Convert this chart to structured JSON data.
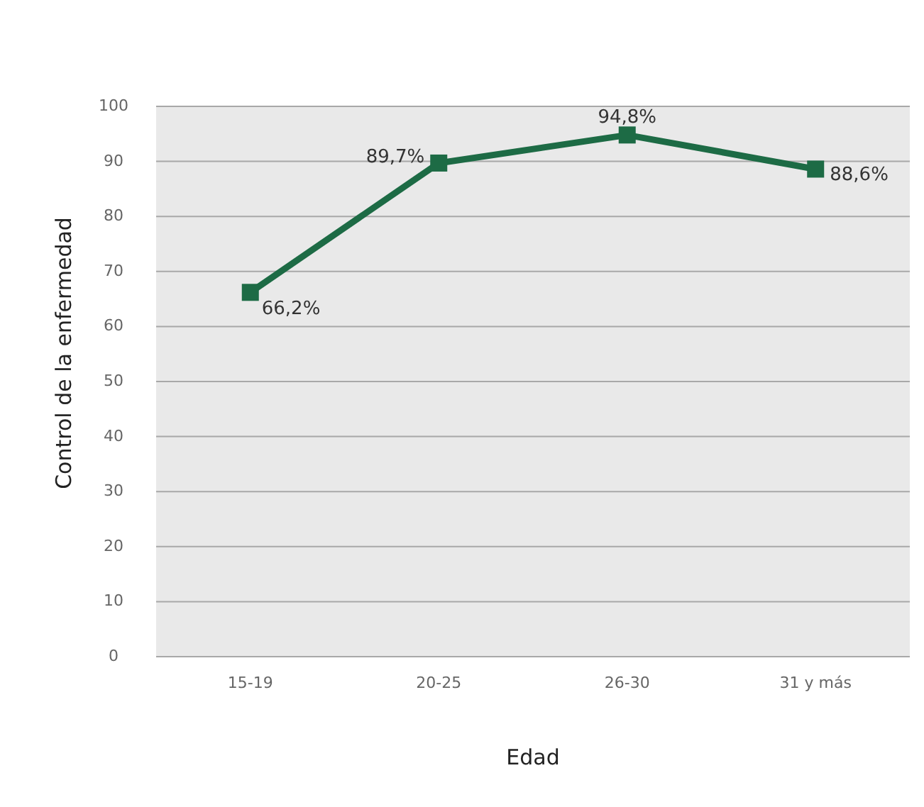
{
  "chart_data": {
    "type": "line",
    "xlabel": "Edad",
    "ylabel": "Control de la enfermedad",
    "categories": [
      "15-19",
      "20-25",
      "26-30",
      "31 y más"
    ],
    "series": [
      {
        "color": "#1d6b45",
        "values": [
          66.2,
          89.7,
          94.8,
          88.6
        ],
        "value_labels": [
          "66,2%",
          "89,7%",
          "94,8%",
          "88,6%"
        ]
      }
    ],
    "ylim": [
      0,
      100
    ],
    "yticks": [
      0,
      10,
      20,
      30,
      40,
      50,
      60,
      70,
      80,
      90,
      100
    ],
    "grid": "y",
    "marker": "square",
    "line_style": "solid"
  }
}
